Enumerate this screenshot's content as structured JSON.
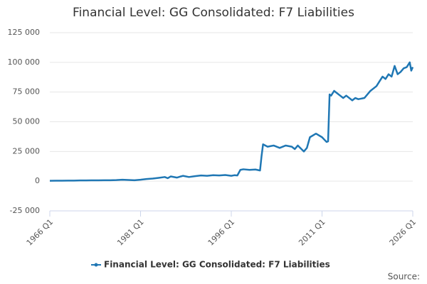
{
  "chart_data": {
    "type": "line",
    "title": "Financial Level: GG Consolidated: F7 Liabilities",
    "source": "Source:",
    "x": [
      1966,
      1967,
      1968,
      1969,
      1970,
      1971,
      1972,
      1973,
      1974,
      1975,
      1976,
      1977,
      1978,
      1979,
      1980,
      1981,
      1982,
      1983,
      1984,
      1985,
      1985.5,
      1986,
      1987,
      1988,
      1989,
      1990,
      1991,
      1992,
      1993,
      1994,
      1995,
      1996,
      1996.5,
      1997,
      1997.5,
      1998,
      1999,
      2000,
      2000.75,
      2001,
      2001.25,
      2002,
      2003,
      2004,
      2005,
      2006,
      2006.5,
      2007,
      2008,
      2008.5,
      2009,
      2010,
      2011,
      2011.75,
      2012,
      2012.25,
      2012.5,
      2013,
      2013.5,
      2014,
      2014.5,
      2015,
      2016,
      2016.5,
      2017,
      2018,
      2019,
      2020,
      2020.5,
      2021,
      2021.5,
      2022,
      2022.5,
      2023,
      2023.5,
      2024,
      2024.5,
      2025,
      2025.5,
      2025.75,
      2026
    ],
    "series": [
      {
        "name": "Financial Level: GG Consolidated: F7 Liabilities",
        "color": "#1f77b4",
        "values": [
          300,
          400,
          400,
          500,
          500,
          600,
          600,
          700,
          700,
          800,
          800,
          900,
          1200,
          1000,
          800,
          1200,
          1800,
          2200,
          2800,
          3500,
          2500,
          4000,
          3000,
          4500,
          3500,
          4200,
          4800,
          4500,
          5000,
          4800,
          5200,
          4500,
          5000,
          4800,
          9500,
          10000,
          9500,
          9800,
          9000,
          21000,
          31000,
          29000,
          30000,
          28000,
          30000,
          29000,
          27000,
          30000,
          25000,
          28000,
          37000,
          40000,
          37000,
          33000,
          33500,
          73000,
          72000,
          76000,
          74000,
          72000,
          70000,
          72000,
          68000,
          70000,
          69000,
          70000,
          76000,
          80000,
          84000,
          88000,
          86000,
          90000,
          88000,
          97000,
          90000,
          92000,
          95000,
          96000,
          100000,
          93000,
          96000
        ]
      }
    ],
    "xlim": [
      1966,
      2026
    ],
    "xticks": [
      {
        "value": 1966,
        "label": "1966 Q1"
      },
      {
        "value": 1981,
        "label": "1981 Q1"
      },
      {
        "value": 1996,
        "label": "1996 Q1"
      },
      {
        "value": 2011,
        "label": "2011 Q1"
      },
      {
        "value": 2026,
        "label": "2026 Q1"
      }
    ],
    "ylim": [
      -25000,
      125000
    ],
    "yticks": [
      {
        "value": -25000,
        "label": "-25 000"
      },
      0,
      {
        "value": 25000,
        "label": "25 000"
      },
      {
        "value": 50000,
        "label": "50 000"
      },
      {
        "value": 75000,
        "label": "75 000"
      },
      {
        "value": 100000,
        "label": "100 000"
      },
      {
        "value": 125000,
        "label": "125 000"
      }
    ],
    "grid": true
  }
}
